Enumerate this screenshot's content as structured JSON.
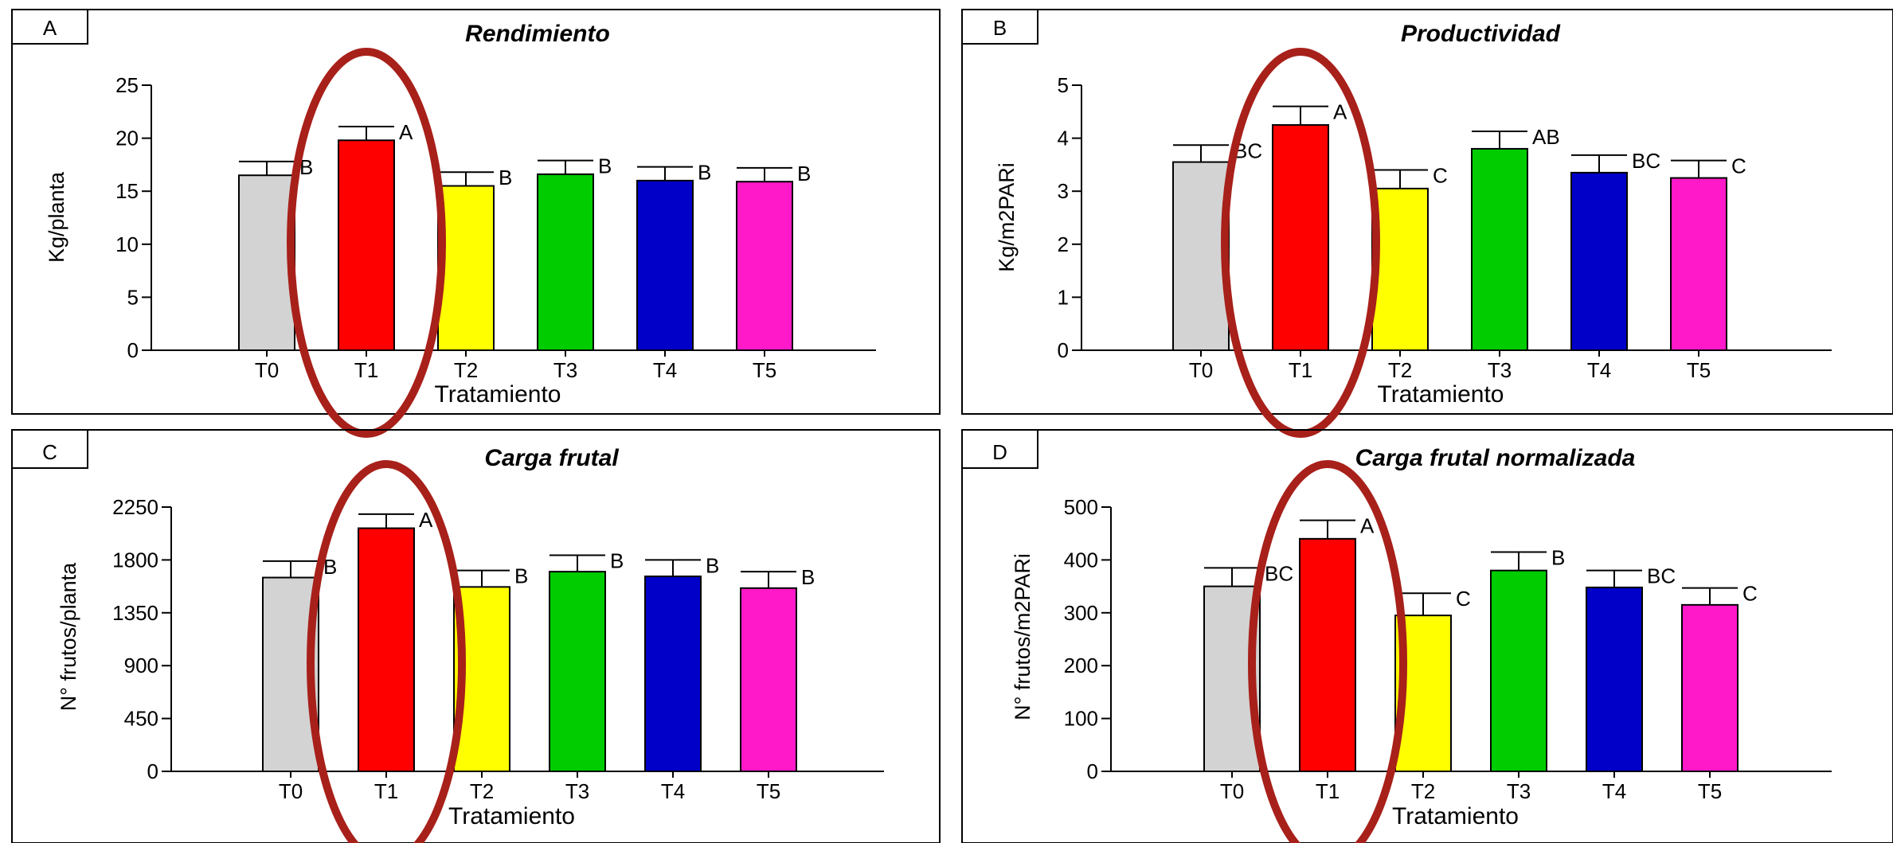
{
  "figure": {
    "category_colors": [
      "#d3d3d3",
      "#ff0000",
      "#ffff00",
      "#00cc00",
      "#0000c8",
      "#ff19c8"
    ],
    "highlight_color": "#a8201a"
  },
  "chart_data": [
    {
      "panel_label": "A",
      "type": "bar",
      "title": "Rendimiento",
      "xlabel": "Tratamiento",
      "ylabel": "Kg/planta",
      "ylim": [
        0,
        25
      ],
      "yticks": [
        0,
        5,
        10,
        15,
        20,
        25
      ],
      "categories": [
        "T0",
        "T1",
        "T2",
        "T3",
        "T4",
        "T5"
      ],
      "values": [
        16.5,
        19.8,
        15.5,
        16.6,
        16.0,
        15.9
      ],
      "errors": [
        1.3,
        1.3,
        1.3,
        1.3,
        1.3,
        1.3
      ],
      "letters": [
        "B",
        "A",
        "B",
        "B",
        "B",
        "B"
      ],
      "highlighted_category": "T1"
    },
    {
      "panel_label": "B",
      "type": "bar",
      "title": "Productividad",
      "xlabel": "Tratamiento",
      "ylabel": "Kg/m2PARi",
      "ylim": [
        0,
        5
      ],
      "yticks": [
        0,
        1,
        2,
        3,
        4,
        5
      ],
      "categories": [
        "T0",
        "T1",
        "T2",
        "T3",
        "T4",
        "T5"
      ],
      "values": [
        3.55,
        4.25,
        3.05,
        3.8,
        3.35,
        3.25
      ],
      "errors": [
        0.32,
        0.35,
        0.35,
        0.33,
        0.33,
        0.33
      ],
      "letters": [
        "BC",
        "A",
        "C",
        "AB",
        "BC",
        "C"
      ],
      "highlighted_category": "T1"
    },
    {
      "panel_label": "C",
      "type": "bar",
      "title": "Carga frutal",
      "xlabel": "Tratamiento",
      "ylabel": "N° frutos/planta",
      "ylim": [
        0,
        2250
      ],
      "yticks": [
        0,
        450,
        900,
        1350,
        1800,
        2250
      ],
      "categories": [
        "T0",
        "T1",
        "T2",
        "T3",
        "T4",
        "T5"
      ],
      "values": [
        1650,
        2070,
        1570,
        1700,
        1660,
        1560
      ],
      "errors": [
        140,
        120,
        140,
        140,
        140,
        140
      ],
      "letters": [
        "B",
        "A",
        "B",
        "B",
        "B",
        "B"
      ],
      "highlighted_category": "T1"
    },
    {
      "panel_label": "D",
      "type": "bar",
      "title": "Carga frutal normalizada",
      "xlabel": "Tratamiento",
      "ylabel": "N° frutos/m2PARi",
      "ylim": [
        0,
        500
      ],
      "yticks": [
        0,
        100,
        200,
        300,
        400,
        500
      ],
      "categories": [
        "T0",
        "T1",
        "T2",
        "T3",
        "T4",
        "T5"
      ],
      "values": [
        350,
        440,
        295,
        380,
        348,
        315
      ],
      "errors": [
        35,
        35,
        42,
        35,
        32,
        32
      ],
      "letters": [
        "BC",
        "A",
        "C",
        "B",
        "BC",
        "C"
      ],
      "highlighted_category": "T1"
    }
  ]
}
